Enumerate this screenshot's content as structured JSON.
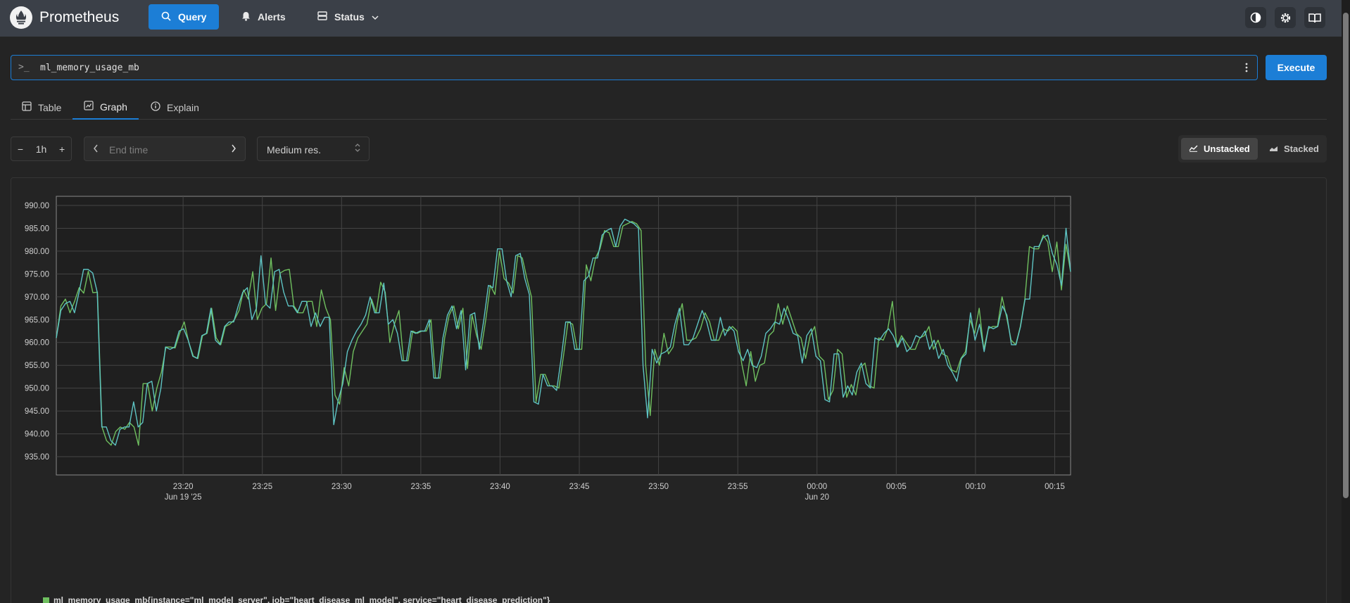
{
  "header": {
    "brand": "Prometheus",
    "nav": [
      {
        "label": "Query",
        "icon": "search-icon",
        "active": true
      },
      {
        "label": "Alerts",
        "icon": "bell-icon"
      },
      {
        "label": "Status",
        "icon": "server-icon",
        "dropdown": true
      }
    ],
    "icons": [
      "theme-toggle-icon",
      "settings-icon",
      "docs-book-icon"
    ]
  },
  "query": {
    "prompt": ">_",
    "expression": "ml_memory_usage_mb",
    "execute_label": "Execute"
  },
  "tabs": [
    {
      "label": "Table",
      "icon": "table-icon"
    },
    {
      "label": "Graph",
      "icon": "graph-icon",
      "active": true
    },
    {
      "label": "Explain",
      "icon": "info-icon"
    }
  ],
  "controls": {
    "range": "1h",
    "minus": "−",
    "plus": "+",
    "end_time_placeholder": "End time",
    "resolution": "Medium res.",
    "unstacked_label": "Unstacked",
    "stacked_label": "Stacked",
    "mode": "unstacked"
  },
  "colors": {
    "accent": "#1c7ed6",
    "series_green": "#6fbf5f",
    "series_teal": "#5ec4c4",
    "grid": "#444444"
  },
  "chart_data": {
    "type": "line",
    "ylim": [
      931.0,
      992.0
    ],
    "yticks": [
      "990.00",
      "985.00",
      "980.00",
      "975.00",
      "970.00",
      "965.00",
      "960.00",
      "955.00",
      "950.00",
      "945.00",
      "940.00",
      "935.00"
    ],
    "ytick_values": [
      990,
      985,
      980,
      975,
      970,
      965,
      960,
      955,
      950,
      945,
      940,
      935
    ],
    "x_range": [
      -64.0,
      0.0
    ],
    "xticks": [
      {
        "label": "23:20",
        "sub": "Jun 19 '25",
        "t": -56
      },
      {
        "label": "23:25",
        "sub": "",
        "t": -51
      },
      {
        "label": "23:30",
        "sub": "",
        "t": -46
      },
      {
        "label": "23:35",
        "sub": "",
        "t": -41
      },
      {
        "label": "23:40",
        "sub": "",
        "t": -36
      },
      {
        "label": "23:45",
        "sub": "",
        "t": -31
      },
      {
        "label": "23:50",
        "sub": "",
        "t": -26
      },
      {
        "label": "23:55",
        "sub": "",
        "t": -21
      },
      {
        "label": "00:00",
        "sub": "Jun 20",
        "t": -16
      },
      {
        "label": "00:05",
        "sub": "",
        "t": -11
      },
      {
        "label": "00:10",
        "sub": "",
        "t": -6
      },
      {
        "label": "00:15",
        "sub": "",
        "t": -1
      }
    ],
    "series": [
      {
        "legend": "ml_memory_usage_mb{instance=\"ml_model_server\", job=\"heart_disease_ml_model\", service=\"heart_disease_prediction\"}",
        "color": "#6fbf5f",
        "values": [
          961.0,
          968.0,
          969.5,
          966.5,
          969.0,
          972.0,
          970.8,
          975.6,
          970.9,
          971.0,
          941.5,
          938.5,
          937.5,
          940.5,
          941.5,
          941.0,
          942.5,
          941.5,
          937.5,
          951.0,
          951.0,
          945.0,
          950.0,
          953.5,
          959.0,
          959.0,
          958.8,
          962.0,
          964.5,
          960.0,
          957.0,
          956.5,
          961.5,
          962.0,
          967.5,
          961.0,
          959.5,
          963.5,
          964.0,
          965.0,
          967.0,
          971.5,
          969.5,
          975.5,
          965.0,
          967.5,
          968.5,
          978.5,
          967.0,
          975.2,
          975.8,
          976.0,
          968.0,
          966.5,
          966.5,
          969.0,
          969.0,
          963.5,
          971.5,
          967.5,
          965.0,
          948.5,
          946.5,
          954.5,
          950.5,
          958.0,
          961.0,
          962.5,
          964.0,
          969.5,
          966.5,
          973.2,
          971.0,
          960.0,
          964.0,
          967.0,
          956.0,
          956.0,
          962.5,
          962.0,
          962.5,
          962.5,
          965.0,
          952.2,
          952.2,
          961.0,
          966.0,
          968.0,
          963.0,
          967.5,
          954.3,
          966.0,
          961.5,
          958.5,
          965.0,
          972.5,
          970.5,
          980.0,
          974.0,
          973.0,
          970.8,
          979.0,
          978.5,
          974.0,
          970.0,
          947.0,
          953.0,
          953.0,
          950.5,
          950.5,
          950.0,
          957.0,
          964.5,
          964.0,
          958.5,
          958.5,
          977.0,
          973.5,
          978.5,
          980.5,
          984.5,
          984.0,
          981.0,
          981.0,
          985.5,
          986.0,
          986.5,
          986.0,
          984.5,
          955.0,
          944.0,
          958.5,
          955.0,
          962.0,
          957.5,
          959.0,
          965.0,
          968.5,
          960.5,
          960.5,
          961.0,
          963.0,
          966.5,
          964.5,
          960.5,
          960.5,
          963.0,
          962.5,
          963.5,
          962.5,
          955.5,
          950.5,
          958.0,
          951.5,
          955.0,
          955.5,
          961.5,
          962.5,
          968.5,
          964.0,
          968.0,
          965.0,
          962.0,
          961.0,
          956.5,
          961.5,
          963.5,
          957.0,
          956.0,
          947.5,
          949.5,
          958.5,
          957.5,
          948.0,
          950.8,
          948.5,
          954.5,
          955.5,
          950.5,
          950.0,
          961.0,
          960.5,
          963.0,
          969.0,
          959.0,
          961.5,
          960.0,
          958.5,
          958.5,
          961.0,
          961.5,
          963.5,
          958.5,
          960.5,
          957.5,
          957.0,
          954.0,
          953.5,
          956.5,
          958.0,
          965.0,
          962.0,
          967.5,
          958.5,
          963.0,
          963.5,
          963.5,
          970.0,
          965.5,
          960.5,
          959.5,
          963.5,
          969.5,
          981.0,
          980.5,
          980.5,
          983.5,
          982.0,
          975.5,
          982.0,
          971.5,
          981.5,
          975.5
        ]
      },
      {
        "legend": "",
        "color": "#5ec4c4",
        "values": [
          961.0,
          967.0,
          968.5,
          969.0,
          966.5,
          971.0,
          976.0,
          976.0,
          975.2,
          971.0,
          941.5,
          941.5,
          938.5,
          937.5,
          941.0,
          941.5,
          941.5,
          947.0,
          941.5,
          942.5,
          951.0,
          951.5,
          945.0,
          950.0,
          959.0,
          958.5,
          959.0,
          962.5,
          963.0,
          960.5,
          957.0,
          956.5,
          961.5,
          962.0,
          967.5,
          960.5,
          959.5,
          963.5,
          964.5,
          964.5,
          968.0,
          971.0,
          972.0,
          965.0,
          967.5,
          979.0,
          968.5,
          967.5,
          975.5,
          976.0,
          971.0,
          968.0,
          968.0,
          966.5,
          969.0,
          969.0,
          963.5,
          966.5,
          963.5,
          965.5,
          965.5,
          942.0,
          947.5,
          951.0,
          958.0,
          960.5,
          962.5,
          964.0,
          966.0,
          970.0,
          966.5,
          966.5,
          973.0,
          964.0,
          965.0,
          962.0,
          956.0,
          956.0,
          962.5,
          962.0,
          962.5,
          962.5,
          965.0,
          952.2,
          952.2,
          961.0,
          966.0,
          968.0,
          963.0,
          967.0,
          954.0,
          966.0,
          966.5,
          958.5,
          965.0,
          972.5,
          972.0,
          980.5,
          980.5,
          973.5,
          970.0,
          979.0,
          979.5,
          974.0,
          970.5,
          947.0,
          946.5,
          953.0,
          950.5,
          950.5,
          949.5,
          956.5,
          964.5,
          964.5,
          958.5,
          958.5,
          973.5,
          974.5,
          978.5,
          978.5,
          983.5,
          984.5,
          985.0,
          981.0,
          985.5,
          987.0,
          986.5,
          986.0,
          985.0,
          955.0,
          943.5,
          958.5,
          955.5,
          957.5,
          958.0,
          959.0,
          964.0,
          967.5,
          959.5,
          959.5,
          961.0,
          964.0,
          967.0,
          964.5,
          960.5,
          960.5,
          965.5,
          961.5,
          963.5,
          962.5,
          958.0,
          956.0,
          958.5,
          955.0,
          954.5,
          957.0,
          962.0,
          963.0,
          964.5,
          964.0,
          967.5,
          965.0,
          962.0,
          961.5,
          955.5,
          961.5,
          963.0,
          957.0,
          956.0,
          947.5,
          947.0,
          957.5,
          957.5,
          948.0,
          950.5,
          948.5,
          953.5,
          955.5,
          951.0,
          950.0,
          961.0,
          960.5,
          962.0,
          963.0,
          961.5,
          959.0,
          961.0,
          958.0,
          959.0,
          961.5,
          961.0,
          962.5,
          958.5,
          960.5,
          956.5,
          958.5,
          955.0,
          953.5,
          951.5,
          956.5,
          957.5,
          966.5,
          960.5,
          964.0,
          958.0,
          963.5,
          963.0,
          963.5,
          968.0,
          966.0,
          959.5,
          959.5,
          963.5,
          969.5,
          969.5,
          981.0,
          981.0,
          983.0,
          983.5,
          979.5,
          977.0,
          972.5,
          985.0,
          975.5
        ]
      }
    ]
  },
  "legend": {
    "text": "ml_memory_usage_mb{instance=\"ml_model_server\", job=\"heart_disease_ml_model\", service=\"heart_disease_prediction\"}"
  }
}
